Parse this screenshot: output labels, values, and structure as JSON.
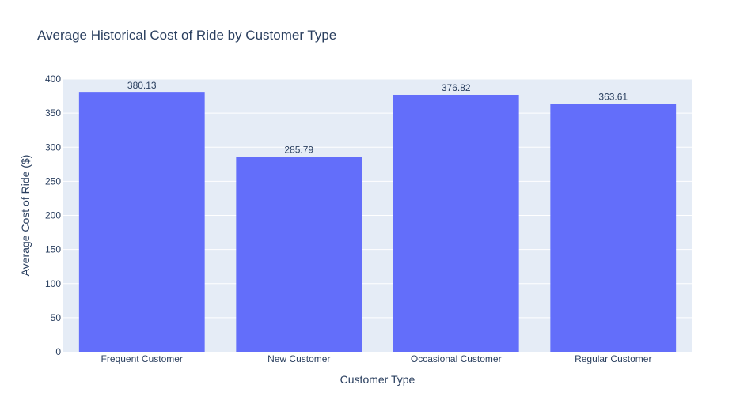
{
  "chart_data": {
    "type": "bar",
    "title": "Average Historical Cost of Ride by Customer Type",
    "xlabel": "Customer Type",
    "ylabel": "Average Cost of Ride ($)",
    "categories": [
      "Frequent Customer",
      "New Customer",
      "Occasional Customer",
      "Regular Customer"
    ],
    "values": [
      380.13,
      285.79,
      376.82,
      363.61
    ],
    "value_labels": [
      "380.13",
      "285.79",
      "376.82",
      "363.61"
    ],
    "ylim": [
      0,
      400
    ],
    "yticks": [
      0,
      50,
      100,
      150,
      200,
      250,
      300,
      350,
      400
    ],
    "grid": true,
    "colors": {
      "bar": "#636efa",
      "plot_bg": "#e5ecf6",
      "grid": "#ffffff",
      "text": "#2a3f5f"
    }
  }
}
